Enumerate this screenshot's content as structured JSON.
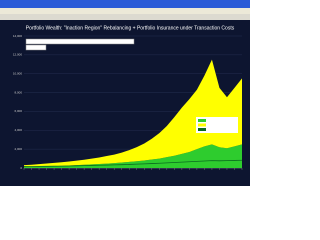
{
  "chart_data": {
    "type": "stacked-area",
    "title": "Portfolio Wealth: \"Inaction Region\" Rebalancing + Portfolio Insurance under Transaction Costs",
    "categories": [
      null,
      null,
      null,
      null,
      null,
      null,
      null,
      null,
      null,
      null,
      null,
      null,
      null,
      null,
      null,
      null,
      null,
      null,
      null,
      null,
      null,
      null,
      null,
      null,
      null,
      null,
      null,
      null,
      null,
      null
    ],
    "series": [
      {
        "color": "#2ecc2e",
        "values": [
          100,
          120,
          150,
          180,
          200,
          230,
          260,
          300,
          340,
          380,
          420,
          470,
          520,
          580,
          650,
          720,
          800,
          900,
          1000,
          1150,
          1300,
          1500,
          1700,
          2000,
          2300,
          2500,
          2200,
          2100,
          2300,
          2500
        ]
      },
      {
        "color": "#ffff00",
        "values": [
          200,
          230,
          260,
          300,
          340,
          380,
          430,
          480,
          540,
          620,
          700,
          800,
          900,
          1050,
          1250,
          1500,
          1800,
          2200,
          2700,
          3300,
          4100,
          4900,
          5600,
          6300,
          7500,
          9000,
          6300,
          5400,
          6200,
          7000
        ]
      },
      {
        "color": "#0a6a20",
        "values": [
          150,
          160,
          170,
          180,
          190,
          200,
          210,
          230,
          250,
          270,
          290,
          310,
          330,
          350,
          380,
          410,
          440,
          470,
          500,
          540,
          580,
          620,
          660,
          700,
          740,
          780,
          760,
          780,
          800,
          820
        ]
      }
    ],
    "ylim": [
      0,
      14000
    ],
    "yticks": [
      0,
      {
        "value": 2000,
        "label": "2,000"
      },
      {
        "value": 4000,
        "label": "4,000"
      },
      {
        "value": 6000,
        "label": "6,000"
      },
      {
        "value": 8000,
        "label": "8,000"
      },
      {
        "value": 10000,
        "label": "10,000"
      },
      {
        "value": 12000,
        "label": "12,000"
      },
      {
        "value": 14000,
        "label": "14,000"
      }
    ],
    "grid": true
  }
}
